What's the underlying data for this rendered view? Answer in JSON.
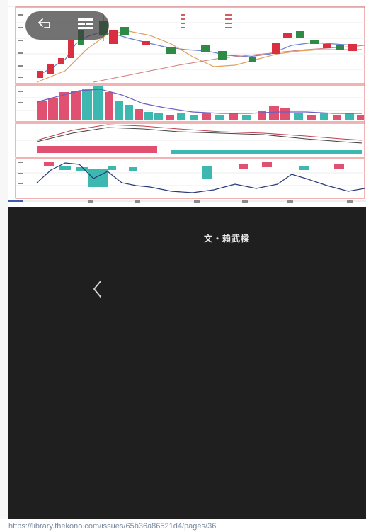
{
  "toolbar": {
    "back_icon": "back-arrow-icon",
    "grid_icon": "grid-menu-icon"
  },
  "article": {
    "author": "文・賴武樑"
  },
  "navigation": {
    "prev_icon": "chevron-left-icon"
  },
  "status": {
    "url": "https://library.thekono.com/issues/65b36a86521d4/pages/36"
  },
  "colors": {
    "dark_panel": "#1f1f1f",
    "candle_up": "#d83040",
    "candle_down": "#2f8a46",
    "volume_up": "#e05070",
    "volume_down": "#3cb8b0"
  }
}
